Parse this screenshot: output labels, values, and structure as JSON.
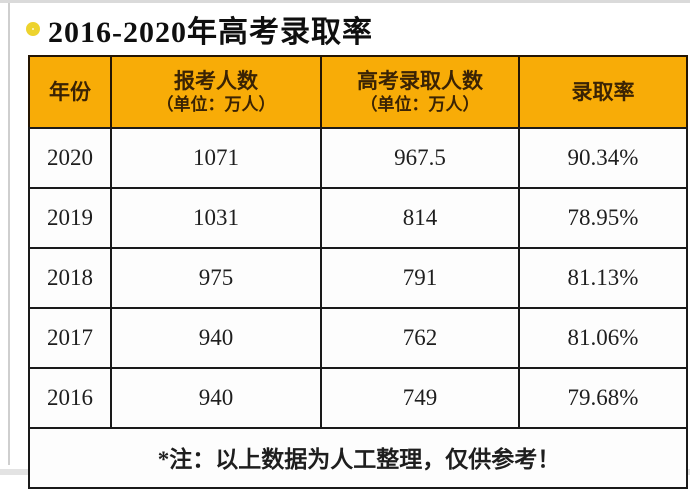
{
  "header": {
    "icon": "ring-icon",
    "title": "2016-2020年高考录取率"
  },
  "table": {
    "columns": [
      {
        "label": "年份",
        "sublabel": ""
      },
      {
        "label": "报考人数",
        "sublabel": "（单位：万人）"
      },
      {
        "label": "高考录取人数",
        "sublabel": "（单位：万人）"
      },
      {
        "label": "录取率",
        "sublabel": ""
      }
    ],
    "rows": [
      [
        "2020",
        "1071",
        "967.5",
        "90.34%"
      ],
      [
        "2019",
        "1031",
        "814",
        "78.95%"
      ],
      [
        "2018",
        "975",
        "791",
        "81.13%"
      ],
      [
        "2017",
        "940",
        "762",
        "81.06%"
      ],
      [
        "2016",
        "940",
        "749",
        "79.68%"
      ]
    ],
    "note": "*注：以上数据为人工整理，仅供参考！"
  },
  "chart_data": {
    "type": "table",
    "title": "2016-2020年高考录取率",
    "columns": [
      "年份",
      "报考人数（单位：万人）",
      "高考录取人数（单位：万人）",
      "录取率"
    ],
    "categories": [
      "2020",
      "2019",
      "2018",
      "2017",
      "2016"
    ],
    "series": [
      {
        "name": "报考人数（单位：万人）",
        "values": [
          1071,
          1031,
          975,
          940,
          940
        ]
      },
      {
        "name": "高考录取人数（单位：万人）",
        "values": [
          967.5,
          814,
          791,
          762,
          749
        ]
      },
      {
        "name": "录取率",
        "values": [
          "90.34%",
          "78.95%",
          "81.13%",
          "81.06%",
          "79.68%"
        ]
      }
    ],
    "note": "*注：以上数据为人工整理，仅供参考！",
    "layout": {
      "legend": "none",
      "grid": "table-borders"
    }
  },
  "colors": {
    "header_bg": "#F8AC07",
    "header_text": "#3A2304",
    "border": "#1A1A1A",
    "icon_ring": "#EDD32E",
    "icon_fill": "#FDF8DC",
    "cell_bg": "#FDFDFD"
  }
}
